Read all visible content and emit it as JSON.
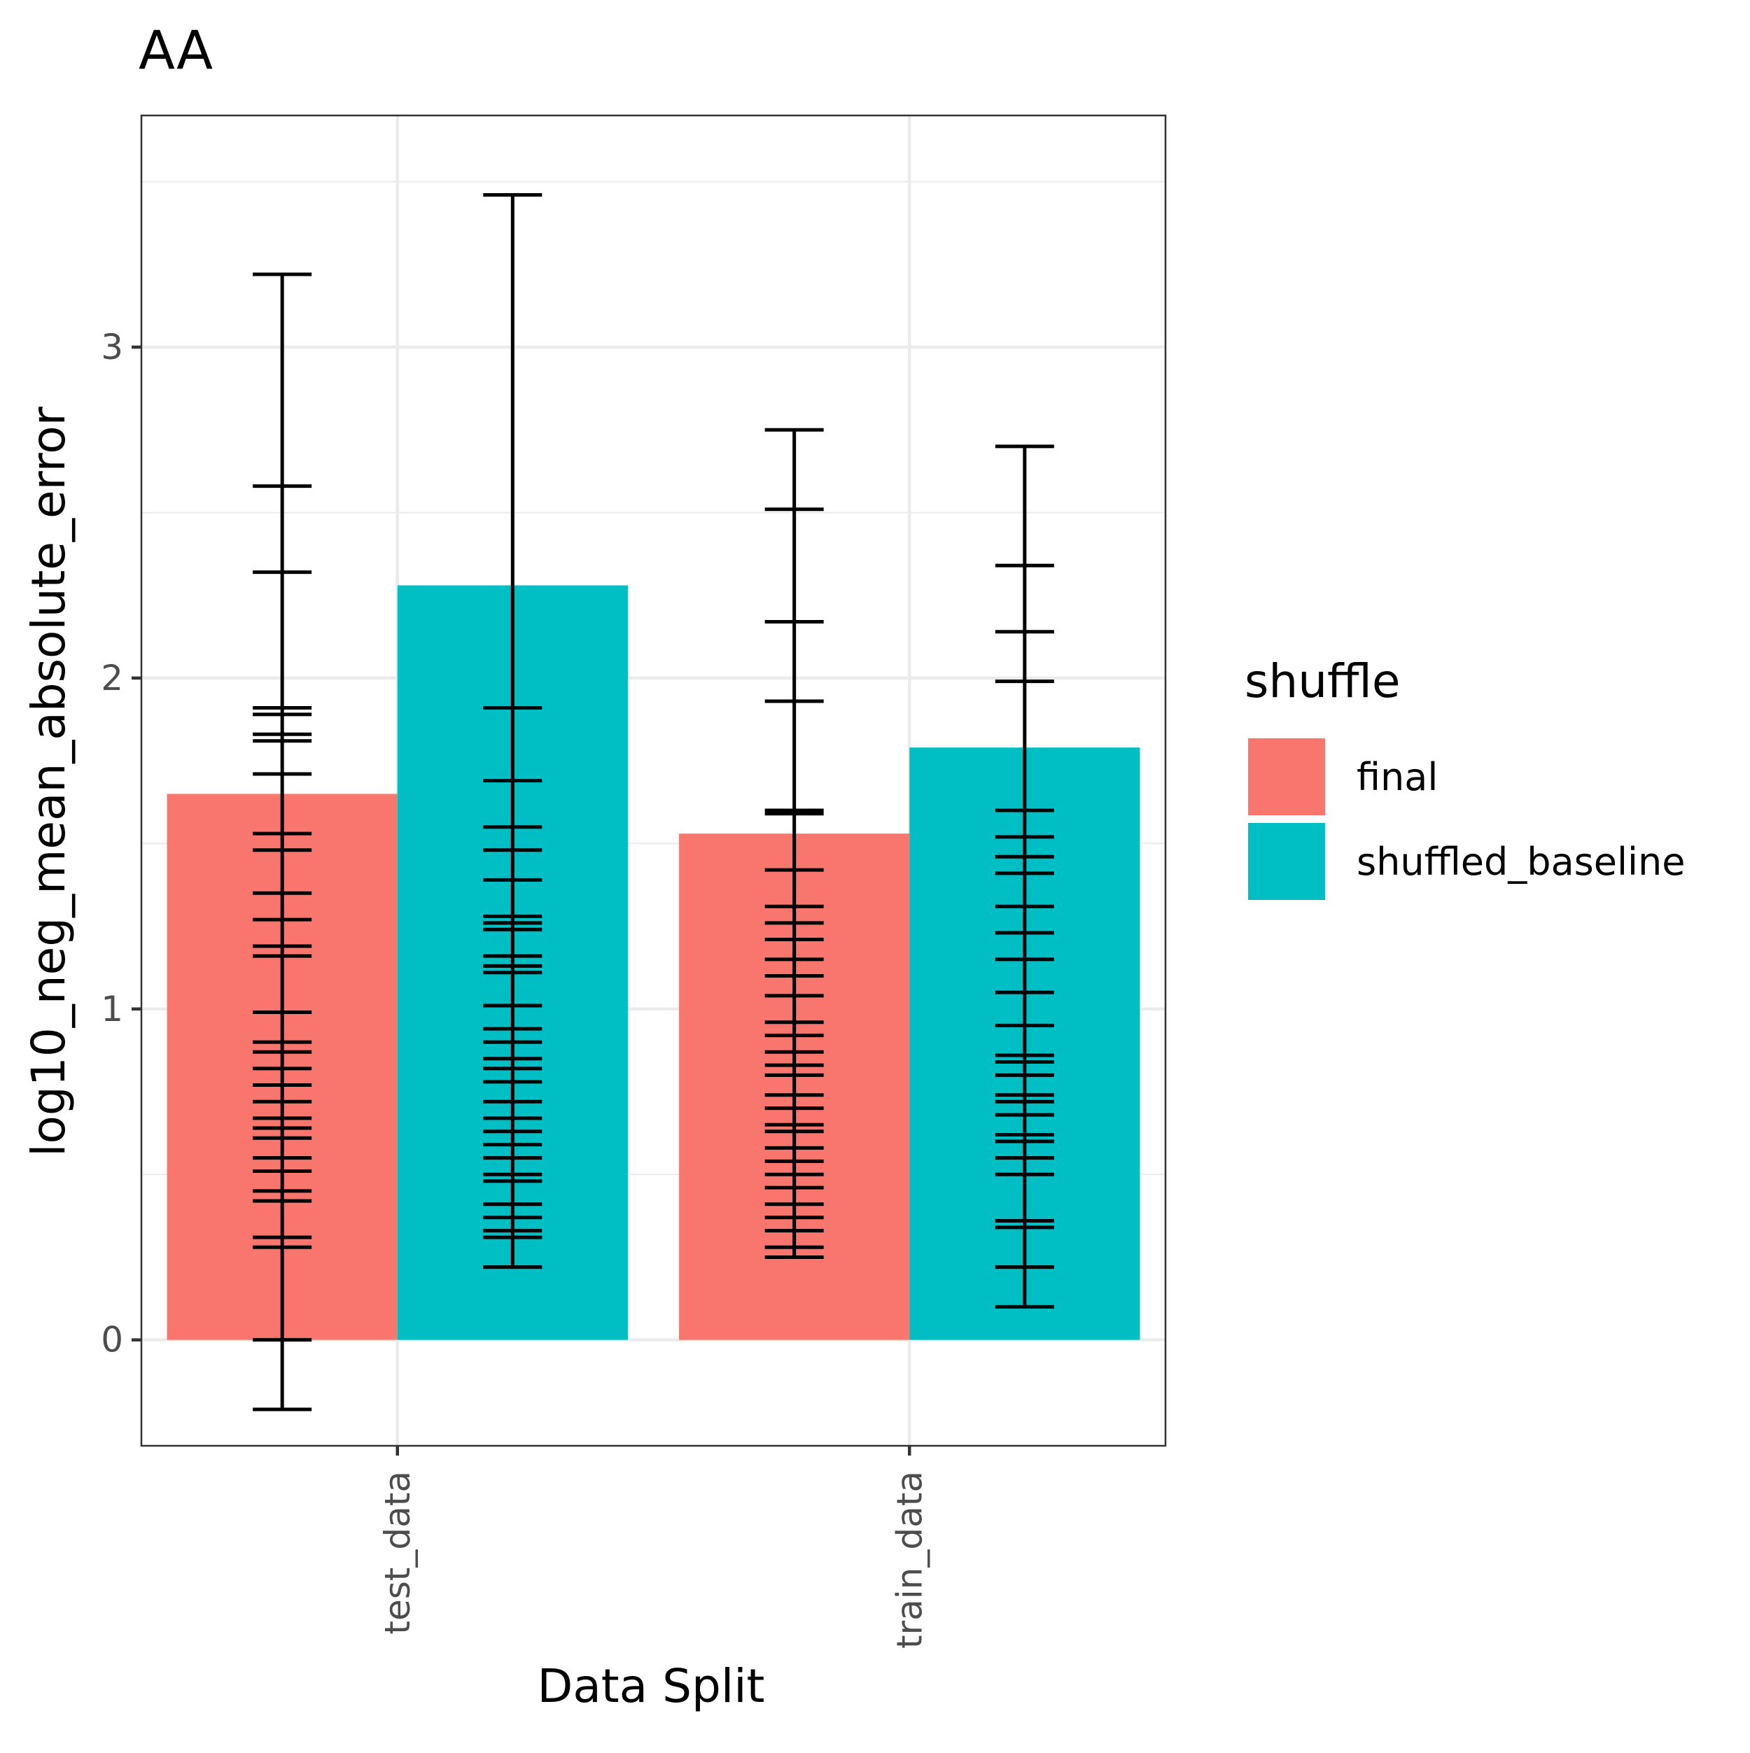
{
  "chart_data": {
    "type": "bar",
    "title": "AA",
    "xlabel": "Data Split",
    "ylabel": "log10_neg_mean_absolute_error",
    "categories": [
      "test_data",
      "train_data"
    ],
    "ylim": [
      -0.32,
      3.7
    ],
    "yticks": [
      0,
      1,
      2,
      3
    ],
    "grid": true,
    "legend": {
      "title": "shuffle",
      "position": "right",
      "entries": [
        "final",
        "shuffled_baseline"
      ]
    },
    "series": [
      {
        "name": "final",
        "color": "#F8766D",
        "values": [
          1.65,
          1.53
        ],
        "error_ticks": [
          [
            -0.21,
            0.0,
            0.28,
            0.31,
            0.42,
            0.45,
            0.51,
            0.55,
            0.61,
            0.64,
            0.67,
            0.72,
            0.77,
            0.82,
            0.87,
            0.9,
            0.99,
            1.16,
            1.19,
            1.27,
            1.35,
            1.48,
            1.53,
            1.71,
            1.81,
            1.83,
            1.89,
            1.91,
            2.32,
            2.58,
            3.22
          ],
          [
            0.25,
            0.28,
            0.33,
            0.37,
            0.41,
            0.46,
            0.5,
            0.54,
            0.58,
            0.63,
            0.65,
            0.7,
            0.74,
            0.8,
            0.83,
            0.87,
            0.92,
            0.96,
            1.04,
            1.1,
            1.15,
            1.21,
            1.26,
            1.31,
            1.42,
            1.59,
            1.6,
            1.93,
            2.17,
            2.51,
            2.75
          ]
        ]
      },
      {
        "name": "shuffled_baseline",
        "color": "#00BFC4",
        "values": [
          2.28,
          1.79
        ],
        "error_ticks": [
          [
            0.22,
            0.31,
            0.33,
            0.37,
            0.41,
            0.48,
            0.5,
            0.55,
            0.59,
            0.63,
            0.67,
            0.72,
            0.78,
            0.82,
            0.85,
            0.9,
            0.94,
            1.01,
            1.11,
            1.13,
            1.16,
            1.24,
            1.26,
            1.28,
            1.39,
            1.48,
            1.55,
            1.69,
            1.91,
            3.46
          ],
          [
            0.1,
            0.22,
            0.34,
            0.36,
            0.5,
            0.55,
            0.6,
            0.62,
            0.68,
            0.72,
            0.74,
            0.8,
            0.84,
            0.86,
            0.95,
            1.05,
            1.15,
            1.23,
            1.31,
            1.41,
            1.46,
            1.52,
            1.6,
            1.99,
            2.14,
            2.34,
            2.7
          ]
        ]
      }
    ]
  }
}
